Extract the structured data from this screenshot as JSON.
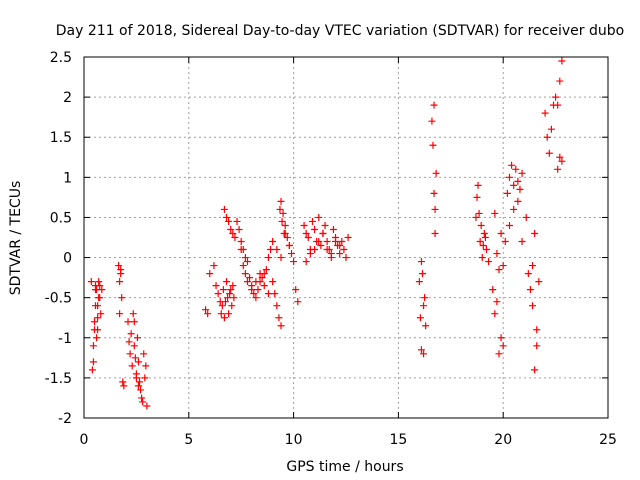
{
  "chart_data": {
    "type": "scatter",
    "title": "Day 211 of 2018, Sidereal Day-to-day VTEC variation (SDTVAR) for receiver dubo",
    "xlabel": "GPS time / hours",
    "ylabel": "SDTVAR / TECUs",
    "xlim": [
      0,
      25
    ],
    "ylim": [
      -2,
      2.5
    ],
    "xticks": [
      "0",
      "5",
      "10",
      "15",
      "20",
      "25"
    ],
    "yticks": [
      "-2",
      "-1.5",
      "-1",
      "-0.5",
      "0",
      "0.5",
      "1",
      "1.5",
      "2",
      "2.5"
    ],
    "grid": true,
    "marker": "+",
    "color": "#ff0000",
    "series": [
      {
        "name": "SDTVAR",
        "x": [
          0.35,
          0.4,
          0.45,
          0.5,
          0.55,
          0.6,
          0.65,
          0.7,
          0.75,
          0.8,
          0.85,
          0.45,
          0.5,
          0.55,
          0.6,
          0.65,
          0.7,
          0.75,
          0.55,
          0.65,
          1.65,
          1.7,
          1.75,
          1.8,
          1.85,
          1.9,
          1.7,
          1.75,
          2.1,
          2.15,
          2.2,
          2.25,
          2.3,
          2.35,
          2.4,
          2.45,
          2.5,
          2.55,
          2.6,
          2.65,
          2.7,
          2.75,
          2.8,
          2.85,
          2.9,
          2.95,
          3.0,
          2.4,
          2.5,
          2.6,
          5.8,
          5.9,
          6.0,
          6.2,
          6.3,
          6.4,
          6.5,
          6.55,
          6.6,
          6.65,
          6.7,
          6.75,
          6.8,
          6.85,
          6.9,
          6.95,
          7.0,
          7.05,
          7.1,
          7.15,
          6.7,
          6.8,
          6.9,
          7.0,
          7.1,
          7.2,
          7.3,
          7.4,
          7.5,
          7.6,
          7.7,
          7.8,
          7.5,
          7.6,
          7.7,
          7.8,
          7.9,
          8.0,
          8.1,
          8.2,
          8.3,
          8.4,
          8.5,
          8.6,
          8.7,
          8.8,
          8.9,
          9.0,
          9.1,
          9.2,
          9.3,
          9.4,
          8.0,
          8.2,
          8.4,
          8.6,
          8.8,
          9.0,
          9.2,
          9.4,
          9.6,
          9.8,
          9.4,
          9.5,
          9.6,
          9.7,
          9.8,
          9.9,
          10.0,
          10.1,
          10.2,
          9.35,
          9.45,
          9.55,
          10.5,
          10.6,
          10.7,
          10.8,
          10.9,
          11.0,
          11.1,
          11.2,
          11.3,
          11.4,
          11.5,
          11.6,
          11.7,
          11.8,
          11.9,
          12.0,
          12.1,
          12.2,
          12.3,
          12.4,
          12.5,
          12.6,
          10.6,
          10.8,
          11.0,
          11.2,
          11.4,
          11.6,
          11.8,
          12.0,
          12.2,
          16.0,
          16.05,
          16.1,
          16.15,
          16.2,
          16.25,
          16.3,
          16.1,
          16.2,
          16.6,
          16.65,
          16.7,
          16.75,
          16.8,
          16.7,
          16.75,
          18.7,
          18.8,
          18.9,
          19.0,
          19.1,
          19.2,
          19.3,
          18.75,
          18.85,
          18.95,
          19.05,
          19.15,
          19.5,
          19.6,
          19.7,
          19.8,
          19.9,
          20.0,
          20.1,
          19.6,
          19.7,
          19.8,
          19.9,
          20.0,
          20.2,
          20.3,
          20.4,
          20.5,
          20.6,
          20.7,
          20.8,
          20.9,
          20.3,
          20.5,
          20.7,
          20.9,
          21.1,
          21.2,
          21.3,
          21.4,
          21.5,
          21.6,
          21.7,
          21.5,
          21.6,
          21.4,
          22.0,
          22.1,
          22.2,
          22.3,
          22.4,
          22.5,
          22.6,
          22.7,
          22.8,
          22.6,
          22.7,
          22.8
        ],
        "y": [
          -0.3,
          -1.4,
          -1.1,
          -0.9,
          -0.6,
          -0.4,
          -0.9,
          -0.5,
          -0.35,
          -0.7,
          -0.4,
          -1.3,
          -0.8,
          -0.35,
          -1.0,
          -0.6,
          -0.3,
          -0.5,
          -0.4,
          -0.75,
          -0.1,
          -0.3,
          -0.2,
          -0.5,
          -1.55,
          -1.6,
          -0.7,
          -0.15,
          -0.8,
          -1.05,
          -1.2,
          -0.95,
          -1.35,
          -0.7,
          -1.1,
          -1.25,
          -1.5,
          -1.0,
          -1.3,
          -1.55,
          -1.65,
          -1.75,
          -1.8,
          -1.2,
          -1.5,
          -1.35,
          -1.85,
          -0.8,
          -1.45,
          -1.6,
          -0.65,
          -0.7,
          -0.2,
          -0.1,
          -0.35,
          -0.45,
          -0.55,
          -0.7,
          -0.6,
          -0.4,
          -0.75,
          -0.55,
          -0.3,
          -0.5,
          -0.7,
          -0.45,
          -0.4,
          -0.6,
          -0.35,
          -0.5,
          0.6,
          0.5,
          0.45,
          0.35,
          0.3,
          0.25,
          0.45,
          0.35,
          0.2,
          0.1,
          0.0,
          -0.05,
          0.1,
          -0.1,
          -0.2,
          -0.3,
          -0.25,
          -0.35,
          -0.45,
          -0.5,
          -0.4,
          -0.3,
          -0.25,
          -0.2,
          -0.15,
          0.0,
          0.1,
          -0.3,
          -0.45,
          -0.6,
          -0.75,
          -0.85,
          -0.4,
          -0.3,
          -0.2,
          -0.35,
          -0.45,
          0.2,
          0.1,
          0.0,
          0.3,
          0.15,
          0.7,
          0.55,
          0.4,
          0.25,
          0.15,
          0.05,
          -0.05,
          -0.4,
          -0.55,
          0.6,
          0.45,
          0.3,
          0.4,
          0.3,
          0.25,
          0.1,
          0.45,
          0.35,
          0.2,
          0.5,
          0.15,
          0.3,
          0.4,
          0.2,
          0.1,
          0.0,
          0.35,
          0.25,
          0.15,
          0.05,
          0.2,
          0.1,
          0.0,
          0.25,
          -0.05,
          0.05,
          0.1,
          0.2,
          0.3,
          0.1,
          0.05,
          0.2,
          0.15,
          -0.3,
          -0.75,
          -1.15,
          -0.2,
          -0.6,
          -0.5,
          -0.85,
          -0.05,
          -1.2,
          1.7,
          1.4,
          0.8,
          0.6,
          1.05,
          1.9,
          0.3,
          0.5,
          0.9,
          0.2,
          0.0,
          0.3,
          0.1,
          -0.05,
          0.75,
          0.55,
          0.4,
          0.15,
          0.25,
          -0.4,
          -0.7,
          -0.55,
          -1.2,
          -1.0,
          -0.1,
          0.2,
          0.55,
          0.05,
          -0.15,
          0.3,
          -1.1,
          0.8,
          1.0,
          1.15,
          0.9,
          1.1,
          0.95,
          0.85,
          1.05,
          0.4,
          0.6,
          0.7,
          0.2,
          0.5,
          -0.2,
          -0.4,
          -0.6,
          -1.4,
          -0.9,
          -0.3,
          0.3,
          -1.1,
          -0.1,
          1.8,
          1.5,
          1.3,
          1.6,
          1.9,
          2.0,
          1.9,
          2.2,
          2.45,
          1.1,
          1.25,
          1.2
        ]
      }
    ]
  }
}
